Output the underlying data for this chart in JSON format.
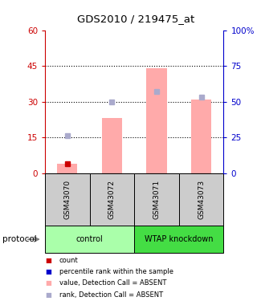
{
  "title": "GDS2010 / 219475_at",
  "samples": [
    "GSM43070",
    "GSM43072",
    "GSM43071",
    "GSM43073"
  ],
  "bar_values_pink": [
    4,
    23,
    44,
    31
  ],
  "light_blue_dot_pct": [
    26,
    50,
    57,
    53
  ],
  "red_dot_values": [
    4,
    0,
    0,
    0
  ],
  "ylim_left": [
    0,
    60
  ],
  "ylim_right": [
    0,
    100
  ],
  "yticks_left": [
    0,
    15,
    30,
    45,
    60
  ],
  "ytick_labels_left": [
    "0",
    "15",
    "30",
    "45",
    "60"
  ],
  "yticks_right": [
    0,
    25,
    50,
    75,
    100
  ],
  "ytick_labels_right": [
    "0",
    "25",
    "50",
    "75",
    "100%"
  ],
  "left_axis_color": "#cc0000",
  "right_axis_color": "#0000cc",
  "bar_color_pink": "#ffaaaa",
  "dot_color_red": "#cc0000",
  "dot_color_light_blue": "#aaaacc",
  "sample_bg_color": "#cccccc",
  "group_spans": [
    {
      "start": 0,
      "end": 2,
      "label": "control",
      "color": "#aaffaa"
    },
    {
      "start": 2,
      "end": 4,
      "label": "WTAP knockdown",
      "color": "#44dd44"
    }
  ],
  "legend_items": [
    {
      "color": "#cc0000",
      "label": "count"
    },
    {
      "color": "#0000cc",
      "label": "percentile rank within the sample"
    },
    {
      "color": "#ffaaaa",
      "label": "value, Detection Call = ABSENT"
    },
    {
      "color": "#aaaacc",
      "label": "rank, Detection Call = ABSENT"
    }
  ],
  "protocol_label": "protocol"
}
